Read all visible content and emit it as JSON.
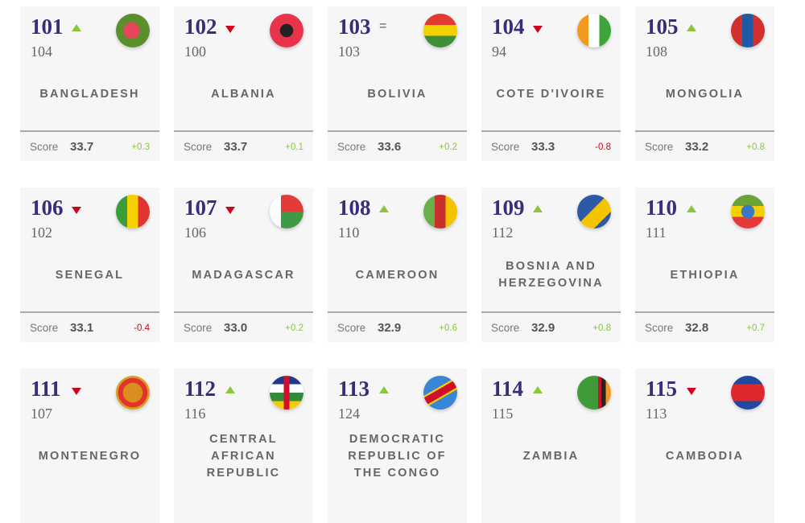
{
  "score_label": "Score",
  "colors": {
    "rank": "#3b2b78",
    "up": "#8cc63f",
    "down": "#d0021b"
  },
  "cards": [
    {
      "rank": "101",
      "trend": "up",
      "prev": "104",
      "name": "BANGLADESH",
      "score": "33.7",
      "delta": "+0.3",
      "flag": "bangladesh-flag-icon"
    },
    {
      "rank": "102",
      "trend": "down",
      "prev": "100",
      "name": "ALBANIA",
      "score": "33.7",
      "delta": "+0.1",
      "flag": "albania-flag-icon"
    },
    {
      "rank": "103",
      "trend": "same",
      "trend_text": "=",
      "prev": "103",
      "name": "BOLIVIA",
      "score": "33.6",
      "delta": "+0.2",
      "flag": "bolivia-flag-icon"
    },
    {
      "rank": "104",
      "trend": "down",
      "prev": "94",
      "name": "COTE D'IVOIRE",
      "score": "33.3",
      "delta": "-0.8",
      "flag": "cote-divoire-flag-icon"
    },
    {
      "rank": "105",
      "trend": "up",
      "prev": "108",
      "name": "MONGOLIA",
      "score": "33.2",
      "delta": "+0.8",
      "flag": "mongolia-flag-icon"
    },
    {
      "rank": "106",
      "trend": "down",
      "prev": "102",
      "name": "SENEGAL",
      "score": "33.1",
      "delta": "-0.4",
      "flag": "senegal-flag-icon"
    },
    {
      "rank": "107",
      "trend": "down",
      "prev": "106",
      "name": "MADAGASCAR",
      "score": "33.0",
      "delta": "+0.2",
      "flag": "madagascar-flag-icon"
    },
    {
      "rank": "108",
      "trend": "up",
      "prev": "110",
      "name": "CAMEROON",
      "score": "32.9",
      "delta": "+0.6",
      "flag": "cameroon-flag-icon"
    },
    {
      "rank": "109",
      "trend": "up",
      "prev": "112",
      "name": "BOSNIA AND HERZEGOVINA",
      "score": "32.9",
      "delta": "+0.8",
      "flag": "bosnia-flag-icon"
    },
    {
      "rank": "110",
      "trend": "up",
      "prev": "111",
      "name": "ETHIOPIA",
      "score": "32.8",
      "delta": "+0.7",
      "flag": "ethiopia-flag-icon"
    },
    {
      "rank": "111",
      "trend": "down",
      "prev": "107",
      "name": "MONTENEGRO",
      "score": "",
      "delta": "",
      "flag": "montenegro-flag-icon"
    },
    {
      "rank": "112",
      "trend": "up",
      "prev": "116",
      "name": "CENTRAL AFRICAN REPUBLIC",
      "score": "",
      "delta": "",
      "flag": "central-african-republic-flag-icon"
    },
    {
      "rank": "113",
      "trend": "up",
      "prev": "124",
      "name": "DEMOCRATIC REPUBLIC OF THE CONGO",
      "score": "",
      "delta": "",
      "flag": "dr-congo-flag-icon"
    },
    {
      "rank": "114",
      "trend": "up",
      "prev": "115",
      "name": "ZAMBIA",
      "score": "",
      "delta": "",
      "flag": "zambia-flag-icon"
    },
    {
      "rank": "115",
      "trend": "down",
      "prev": "113",
      "name": "CAMBODIA",
      "score": "",
      "delta": "",
      "flag": "cambodia-flag-icon"
    }
  ]
}
